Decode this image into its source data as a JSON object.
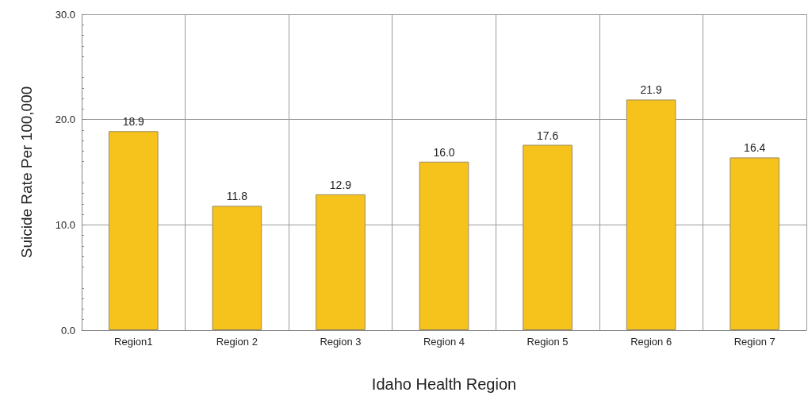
{
  "chart_data": {
    "type": "bar",
    "xlabel": "Idaho Health Region",
    "ylabel": "Suicide Rate Per 100,000",
    "categories": [
      "Region1",
      "Region 2",
      "Region 3",
      "Region 4",
      "Region 5",
      "Region 6",
      "Region 7"
    ],
    "values": [
      18.9,
      11.8,
      12.9,
      16.0,
      17.6,
      21.9,
      16.4
    ],
    "value_labels": [
      "18.9",
      "11.8",
      "12.9",
      "16.0",
      "17.6",
      "21.9",
      "16.4"
    ],
    "color": "#f6c21c",
    "ylim": [
      0,
      30
    ],
    "yticks": [
      {
        "value": 0,
        "label": "0.0"
      },
      {
        "value": 10,
        "label": "10.0"
      },
      {
        "value": 20,
        "label": "20.0"
      },
      {
        "value": 30,
        "label": "30.0"
      }
    ],
    "grid": true
  }
}
